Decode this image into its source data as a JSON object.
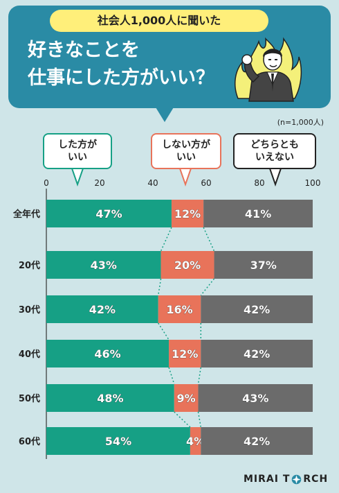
{
  "header": {
    "survey_label": "社会人1,000人に聞いた",
    "title_line_1": "好きなことを",
    "title_line_2": "仕事にした方がいい？"
  },
  "sample_note": "(n=1,000人)",
  "colors": {
    "yes": "#16a085",
    "no": "#e8735a",
    "neutral": "#6b6b6b",
    "header": "#2a8ba5",
    "background": "#cfe5e8",
    "pill": "#ffef7a"
  },
  "logo": {
    "text_1": "MIRAI T",
    "text_2": "RCH",
    "icon": "star-compass-icon"
  },
  "chart_data": {
    "type": "bar",
    "stacked": true,
    "orientation": "horizontal",
    "xlim": [
      0,
      100
    ],
    "x_ticks": [
      "0",
      "20",
      "40",
      "60",
      "80",
      "100"
    ],
    "categories": [
      "全年代",
      "20代",
      "30代",
      "40代",
      "50代",
      "60代"
    ],
    "series": [
      {
        "name": "した方が\nいい",
        "color": "#16a085",
        "values": [
          47,
          43,
          42,
          46,
          48,
          54
        ]
      },
      {
        "name": "しない方が\nいい",
        "color": "#e8735a",
        "values": [
          12,
          20,
          16,
          12,
          9,
          4
        ]
      },
      {
        "name": "どちらとも\nいえない",
        "color": "#6b6b6b",
        "values": [
          41,
          37,
          42,
          42,
          43,
          42
        ]
      }
    ],
    "unit": "%"
  }
}
